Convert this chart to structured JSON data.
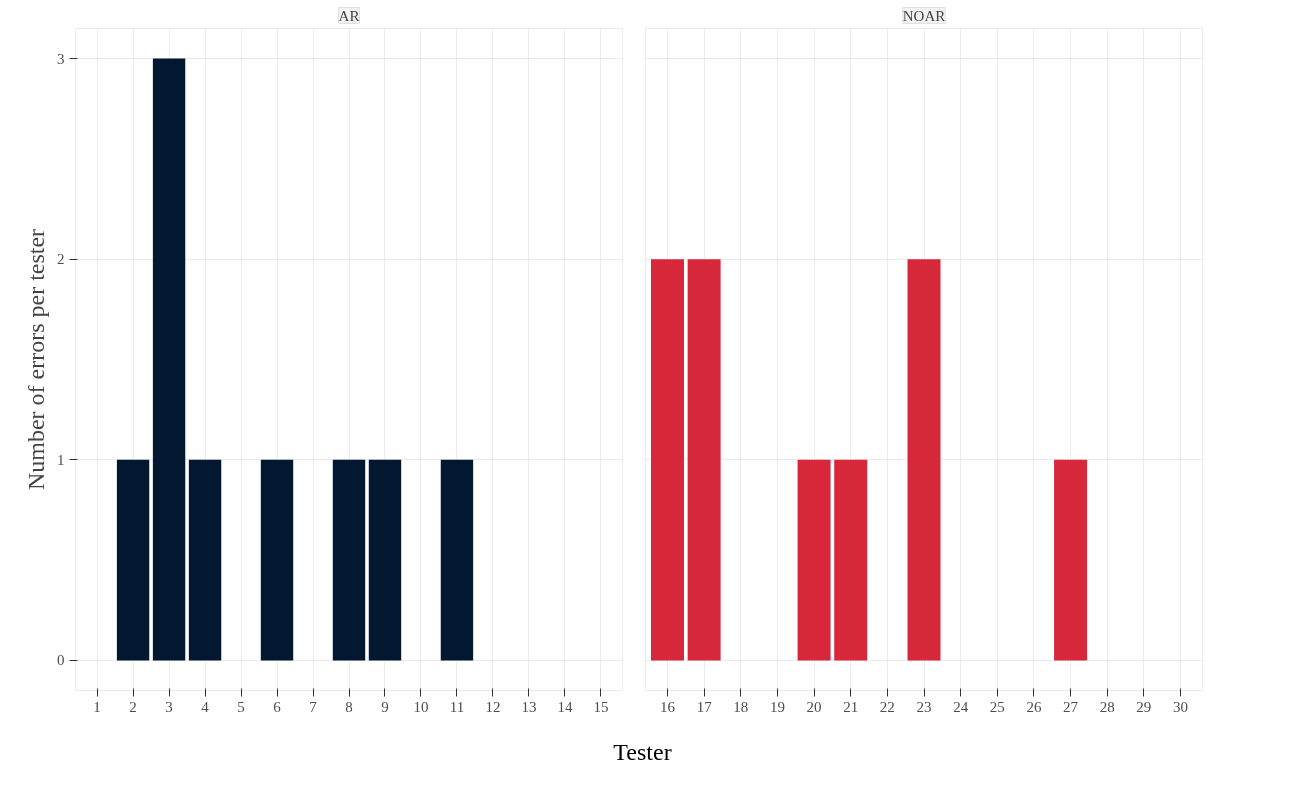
{
  "chart_data": [
    {
      "type": "bar",
      "title": "AR",
      "xlabel": "Tester",
      "ylabel": "Number of errors per tester",
      "x": [
        1,
        2,
        3,
        4,
        5,
        6,
        7,
        8,
        9,
        10,
        11,
        12,
        13,
        14,
        15
      ],
      "series": [
        {
          "color": "#021730",
          "values": [
            0,
            1,
            3,
            1,
            0,
            1,
            0,
            1,
            1,
            0,
            1,
            0,
            0,
            0,
            0
          ]
        }
      ],
      "xlim": [
        0.4,
        15.6
      ],
      "xticks": [
        1,
        2,
        3,
        4,
        5,
        6,
        7,
        8,
        9,
        10,
        11,
        12,
        13,
        14,
        15
      ],
      "ylim": [
        -0.15,
        3.15
      ],
      "yticks": [
        0,
        1,
        2,
        3
      ],
      "grid": true
    },
    {
      "type": "bar",
      "title": "NOAR",
      "x": [
        16,
        17,
        18,
        19,
        20,
        21,
        22,
        23,
        24,
        25,
        26,
        27,
        28,
        29,
        30
      ],
      "series": [
        {
          "color": "#d7283b",
          "values": [
            2,
            2,
            0,
            0,
            1,
            1,
            0,
            2,
            0,
            0,
            0,
            1,
            0,
            0,
            0
          ]
        }
      ],
      "xlim": [
        15.4,
        30.6
      ],
      "xticks": [
        16,
        17,
        18,
        19,
        20,
        21,
        22,
        23,
        24,
        25,
        26,
        27,
        28,
        29,
        30
      ],
      "ylim": [
        -0.15,
        3.15
      ],
      "yticks": [
        0,
        1,
        2,
        3
      ],
      "grid": true,
      "tick_labels": "x"
    }
  ]
}
